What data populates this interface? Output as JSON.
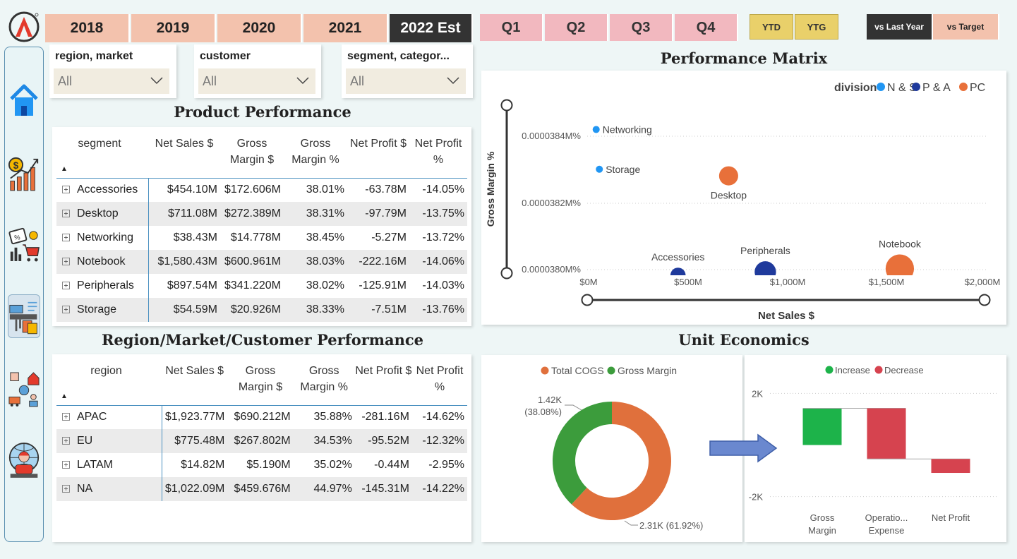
{
  "years": [
    {
      "label": "2018",
      "selected": false
    },
    {
      "label": "2019",
      "selected": false
    },
    {
      "label": "2020",
      "selected": false
    },
    {
      "label": "2021",
      "selected": false
    },
    {
      "label": "2022 Est",
      "selected": true
    }
  ],
  "quarters": [
    "Q1",
    "Q2",
    "Q3",
    "Q4"
  ],
  "period_toggle": [
    "YTD",
    "YTG"
  ],
  "comparison": [
    {
      "label": "vs Last Year",
      "selected": true
    },
    {
      "label": "vs Target",
      "selected": false
    }
  ],
  "slicers": [
    {
      "label": "region, market",
      "value": "All"
    },
    {
      "label": "customer",
      "value": "All"
    },
    {
      "label": "segment, categor...",
      "value": "All"
    }
  ],
  "nav": [
    "home-icon",
    "sales-growth-icon",
    "marketing-discount-icon",
    "product-basket-icon",
    "supply-chain-icon",
    "global-customer-icon"
  ],
  "product_performance": {
    "title": "Product Performance",
    "headers": [
      "segment",
      "Net Sales $",
      "Gross Margin $",
      "Gross Margin %",
      "Net Profit $",
      "Net Profit %"
    ],
    "rows": [
      [
        "Accessories",
        "$454.10M",
        "$172.606M",
        "38.01%",
        "-63.78M",
        "-14.05%"
      ],
      [
        "Desktop",
        "$711.08M",
        "$272.389M",
        "38.31%",
        "-97.79M",
        "-13.75%"
      ],
      [
        "Networking",
        "$38.43M",
        "$14.778M",
        "38.45%",
        "-5.27M",
        "-13.72%"
      ],
      [
        "Notebook",
        "$1,580.43M",
        "$600.961M",
        "38.03%",
        "-222.16M",
        "-14.06%"
      ],
      [
        "Peripherals",
        "$897.54M",
        "$341.220M",
        "38.02%",
        "-125.91M",
        "-14.03%"
      ],
      [
        "Storage",
        "$54.59M",
        "$20.926M",
        "38.33%",
        "-7.51M",
        "-13.76%"
      ]
    ]
  },
  "region_performance": {
    "title": "Region/Market/Customer Performance",
    "headers": [
      "region",
      "Net Sales $",
      "Gross Margin $",
      "Gross Margin %",
      "Net Profit $",
      "Net Profit %"
    ],
    "rows": [
      [
        "APAC",
        "$1,923.77M",
        "$690.212M",
        "35.88%",
        "-281.16M",
        "-14.62%"
      ],
      [
        "EU",
        "$775.48M",
        "$267.802M",
        "34.53%",
        "-95.52M",
        "-12.32%"
      ],
      [
        "LATAM",
        "$14.82M",
        "$5.190M",
        "35.02%",
        "-0.44M",
        "-2.95%"
      ],
      [
        "NA",
        "$1,022.09M",
        "$459.676M",
        "44.97%",
        "-145.31M",
        "-14.22%"
      ]
    ]
  },
  "performance_matrix": {
    "title": "Performance Matrix",
    "legend_title": "division",
    "legend": [
      {
        "name": "N & S",
        "color": "#2196f3"
      },
      {
        "name": "P & A",
        "color": "#1f3a9c"
      },
      {
        "name": "PC",
        "color": "#e8703a"
      }
    ],
    "xlabel": "Net Sales $",
    "ylabel": "Gross Margin %",
    "x_ticks": [
      "$0M",
      "$500M",
      "$1,000M",
      "$1,500M",
      "$2,000M"
    ],
    "y_ticks": [
      "0.0000384M%",
      "0.0000382M%",
      "0.0000380M%"
    ]
  },
  "chart_data": [
    {
      "type": "scatter",
      "title": "Performance Matrix",
      "xlabel": "Net Sales $",
      "ylabel": "Gross Margin %",
      "xlim": [
        0,
        2000
      ],
      "ylim": [
        0.03801,
        0.0385
      ],
      "points": [
        {
          "label": "Networking",
          "x": 38.43,
          "y": 0.03845,
          "size": 14.778,
          "series": "N & S"
        },
        {
          "label": "Storage",
          "x": 54.59,
          "y": 0.03833,
          "size": 20.926,
          "series": "N & S"
        },
        {
          "label": "Desktop",
          "x": 711.08,
          "y": 0.03831,
          "size": 272.389,
          "series": "PC"
        },
        {
          "label": "Accessories",
          "x": 454.1,
          "y": 0.03801,
          "size": 172.606,
          "series": "P & A"
        },
        {
          "label": "Peripherals",
          "x": 897.54,
          "y": 0.03802,
          "size": 341.22,
          "series": "P & A"
        },
        {
          "label": "Notebook",
          "x": 1580.43,
          "y": 0.03803,
          "size": 600.961,
          "series": "PC"
        }
      ]
    },
    {
      "type": "pie",
      "title": "",
      "legend": [
        {
          "name": "Total COGS",
          "color": "#e0703c"
        },
        {
          "name": "Gross Margin",
          "color": "#3c9c3c"
        }
      ],
      "slices": [
        {
          "name": "Total COGS",
          "value": 2.31,
          "label": "2.31K (61.92%)",
          "color": "#e0703c"
        },
        {
          "name": "Gross Margin",
          "value": 1.42,
          "label_line1": "1.42K",
          "label_line2": "(38.08%)",
          "color": "#3c9c3c"
        }
      ]
    },
    {
      "type": "bar",
      "subtype": "waterfall",
      "title": "",
      "legend": [
        {
          "name": "Increase",
          "color": "#1db34a"
        },
        {
          "name": "Decrease",
          "color": "#d6434f"
        }
      ],
      "categories": [
        "Gross Margin",
        "Operatio... Expense",
        "Net Profit"
      ],
      "category_lines": [
        [
          "Gross",
          "Margin"
        ],
        [
          "Operatio...",
          "Expense"
        ],
        [
          "Net Profit"
        ]
      ],
      "steps": [
        1420,
        -1960,
        -540
      ],
      "ylim": [
        -2200,
        2200
      ],
      "y_ticks": [
        "2K",
        "-2K"
      ]
    }
  ],
  "unit_economics": {
    "title": "Unit Economics"
  }
}
